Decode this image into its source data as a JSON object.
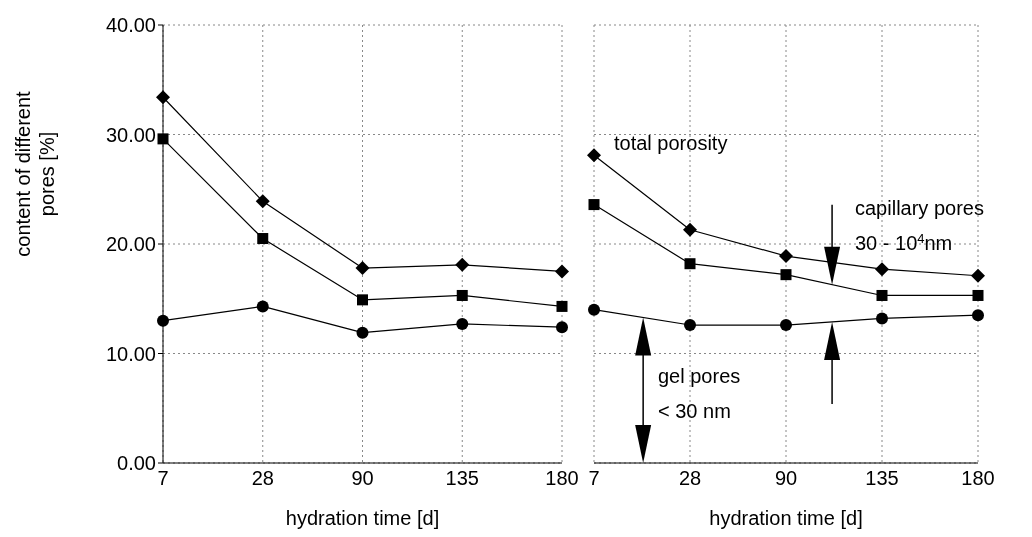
{
  "chart_data": [
    {
      "type": "line",
      "categories": [
        "7",
        "28",
        "90",
        "135",
        "180"
      ],
      "xlabel": "hydration time [d]",
      "ylabel": "content of different pores [%]",
      "ylim": [
        0,
        40
      ],
      "yticks": [
        {
          "value": 0,
          "label": "0.00"
        },
        {
          "value": 10,
          "label": "10.00"
        },
        {
          "value": 20,
          "label": "20.00"
        },
        {
          "value": 30,
          "label": "30.00"
        },
        {
          "value": 40,
          "label": "40.00"
        }
      ],
      "grid": true,
      "line_style": "solid",
      "series": [
        {
          "color": "#000000",
          "marker": "diamond",
          "values": [
            33.4,
            23.9,
            17.8,
            18.1,
            17.5
          ]
        },
        {
          "color": "#000000",
          "marker": "square",
          "values": [
            29.6,
            20.5,
            14.9,
            15.3,
            14.3
          ]
        },
        {
          "color": "#000000",
          "marker": "circle",
          "values": [
            13.0,
            14.3,
            11.9,
            12.7,
            12.4
          ]
        }
      ]
    },
    {
      "type": "line",
      "categories": [
        "7",
        "28",
        "90",
        "135",
        "180"
      ],
      "xlabel": "hydration time [d]",
      "ylim": [
        0,
        40
      ],
      "yticks": [
        0,
        10,
        20,
        30,
        40
      ],
      "tick_labels": "x",
      "grid": true,
      "line_style": "solid",
      "series": [
        {
          "color": "#000000",
          "marker": "diamond",
          "values": [
            28.1,
            21.3,
            18.9,
            17.7,
            17.1
          ]
        },
        {
          "color": "#000000",
          "marker": "square",
          "values": [
            23.6,
            18.2,
            17.2,
            15.3,
            15.3
          ]
        },
        {
          "color": "#000000",
          "marker": "circle",
          "values": [
            14.0,
            12.6,
            12.6,
            13.2,
            13.5
          ]
        }
      ],
      "annotations": [
        "total porosity",
        "capillary pores\n30 - 10$^{4}$nm",
        "gel pores\n< 30 nm"
      ]
    }
  ]
}
